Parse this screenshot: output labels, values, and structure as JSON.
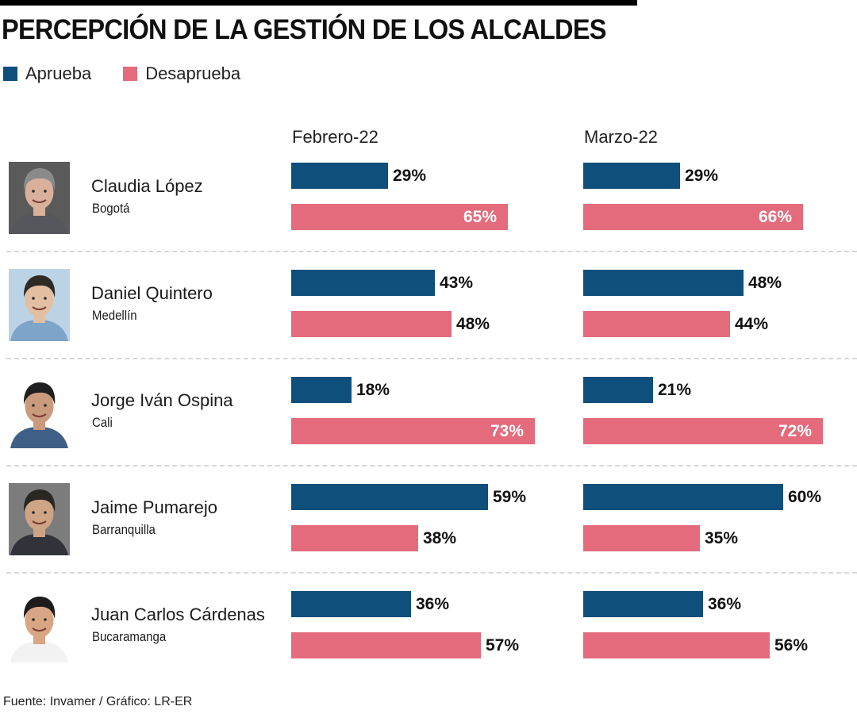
{
  "title": "PERCEPCIÓN DE LA GESTIÓN DE LOS ALCALDES",
  "legend": [
    {
      "label": "Aprueba",
      "color": "#0f4f7b"
    },
    {
      "label": "Desaprueba",
      "color": "#e36b7c"
    }
  ],
  "columns": [
    "Febrero-22",
    "Marzo-22"
  ],
  "mayors": [
    {
      "name": "Claudia López",
      "city": "Bogotá",
      "photo": "portrait-photo"
    },
    {
      "name": "Daniel Quintero",
      "city": "Medellín",
      "photo": "portrait-photo"
    },
    {
      "name": "Jorge Iván Ospina",
      "city": "Cali",
      "photo": "portrait-photo"
    },
    {
      "name": "Jaime Pumarejo",
      "city": "Barranquilla",
      "photo": "portrait-photo"
    },
    {
      "name": "Juan Carlos Cárdenas",
      "city": "Bucaramanga",
      "photo": "portrait-photo"
    }
  ],
  "source": "Fuente: Invamer / Gráfico: LR-ER",
  "chart_data": {
    "type": "bar",
    "orientation": "horizontal",
    "title": "PERCEPCIÓN DE LA GESTIÓN DE LOS ALCALDES",
    "categories": [
      "Claudia López (Bogotá)",
      "Daniel Quintero (Medellín)",
      "Jorge Iván Ospina (Cali)",
      "Jaime Pumarejo (Barranquilla)",
      "Juan Carlos Cárdenas (Bucaramanga)"
    ],
    "panels": [
      "Febrero-22",
      "Marzo-22"
    ],
    "unit": "%",
    "series": [
      {
        "name": "Aprueba",
        "color": "#0f4f7b",
        "panel": "Febrero-22",
        "values": [
          29,
          43,
          18,
          59,
          36
        ]
      },
      {
        "name": "Desaprueba",
        "color": "#e36b7c",
        "panel": "Febrero-22",
        "values": [
          65,
          48,
          73,
          38,
          57
        ]
      },
      {
        "name": "Aprueba",
        "color": "#0f4f7b",
        "panel": "Marzo-22",
        "values": [
          29,
          48,
          21,
          60,
          36
        ]
      },
      {
        "name": "Desaprueba",
        "color": "#e36b7c",
        "panel": "Marzo-22",
        "values": [
          66,
          44,
          72,
          35,
          56
        ]
      }
    ],
    "xlim": [
      0,
      100
    ],
    "grid": false,
    "legend": "top-left",
    "value_labels": {
      "Febrero-22": {
        "Aprueba": [
          "29%",
          "43%",
          "18%",
          "59%",
          "36%"
        ],
        "Desaprueba": [
          "65%",
          "48%",
          "73%",
          "38%",
          "57%"
        ]
      },
      "Marzo-22": {
        "Aprueba": [
          "29%",
          "48%",
          "21%",
          "60%",
          "36%"
        ],
        "Desaprueba": [
          "66%",
          "44%",
          "72%",
          "35%",
          "56%"
        ]
      }
    }
  }
}
